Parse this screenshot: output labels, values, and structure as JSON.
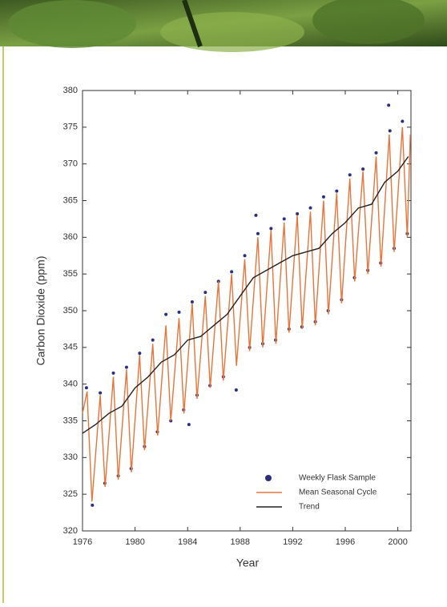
{
  "chart_data": {
    "type": "line",
    "x_label": "Year",
    "y_label": "Carbon Dioxide (ppm)",
    "xlim": [
      1976,
      2001
    ],
    "xticks": [
      1976,
      1980,
      1984,
      1988,
      1992,
      1996,
      2000
    ],
    "ylim": [
      320,
      380
    ],
    "yticks": [
      320,
      325,
      330,
      335,
      340,
      345,
      350,
      355,
      360,
      365,
      370,
      375,
      380
    ],
    "series": [
      {
        "name": "Weekly Flask Sample",
        "type": "scatter",
        "color": "#2b2f7c",
        "x": [
          1976.3,
          1976.75,
          1977.35,
          1977.7,
          1978.35,
          1978.72,
          1979.35,
          1979.7,
          1980.35,
          1980.72,
          1981.35,
          1981.7,
          1982.35,
          1982.72,
          1983.35,
          1983.7,
          1984.1,
          1984.35,
          1984.72,
          1985.35,
          1985.7,
          1986.35,
          1986.72,
          1987.35,
          1987.7,
          1988.35,
          1988.72,
          1989.2,
          1989.35,
          1989.72,
          1990.35,
          1990.7,
          1991.35,
          1991.72,
          1992.35,
          1992.7,
          1993.35,
          1993.72,
          1994.35,
          1994.7,
          1995.35,
          1995.72,
          1996.35,
          1996.7,
          1997.35,
          1997.72,
          1998.35,
          1998.7,
          1999.3,
          1999.4,
          1999.72,
          2000.35,
          2000.72
        ],
        "values": [
          339.5,
          323.5,
          338.8,
          326.5,
          341.5,
          327.5,
          342.3,
          328.5,
          344.2,
          331.5,
          346,
          333.5,
          349.5,
          335,
          349.8,
          336.5,
          334.5,
          351.2,
          338.5,
          352.5,
          339.8,
          354,
          341,
          355.3,
          339.2,
          357.5,
          345,
          363,
          360.5,
          345.5,
          361.2,
          346,
          362.5,
          347.5,
          363.2,
          347.8,
          364,
          348.5,
          365.5,
          350,
          366.3,
          351.5,
          368.5,
          354.5,
          369.3,
          355.5,
          371.5,
          356.5,
          378,
          374.5,
          358.5,
          375.8,
          360.5
        ]
      },
      {
        "name": "Mean Seasonal Cycle",
        "type": "line",
        "color": "#e8743b",
        "x": [
          1976.0,
          1976.35,
          1976.72,
          1977.35,
          1977.72,
          1978.35,
          1978.72,
          1979.35,
          1979.72,
          1980.35,
          1980.72,
          1981.35,
          1981.72,
          1982.35,
          1982.72,
          1983.35,
          1983.72,
          1984.35,
          1984.72,
          1985.35,
          1985.72,
          1986.35,
          1986.72,
          1987.35,
          1987.72,
          1988.35,
          1988.72,
          1989.35,
          1989.72,
          1990.35,
          1990.72,
          1991.35,
          1991.72,
          1992.35,
          1992.72,
          1993.35,
          1993.72,
          1994.35,
          1994.72,
          1995.35,
          1995.72,
          1996.35,
          1996.72,
          1997.35,
          1997.72,
          1998.35,
          1998.72,
          1999.35,
          1999.72,
          2000.35,
          2000.72,
          2000.95
        ],
        "values": [
          336,
          339,
          324,
          338.5,
          326,
          341,
          327,
          342,
          328,
          344,
          331,
          345.5,
          333,
          348,
          335,
          349,
          336,
          351,
          338,
          352,
          339.5,
          354,
          340.5,
          355,
          342.5,
          357,
          344.5,
          360,
          345,
          361,
          345.5,
          362,
          347,
          363,
          347.5,
          363.5,
          348,
          365,
          349.5,
          366,
          351,
          368,
          354,
          369,
          355,
          371,
          356,
          374,
          358,
          375,
          360,
          374
        ]
      },
      {
        "name": "Trend",
        "type": "line",
        "color": "#222222",
        "x": [
          1976,
          1977,
          1978,
          1979,
          1980,
          1981,
          1982,
          1983,
          1984,
          1985,
          1986,
          1987,
          1988,
          1989,
          1990,
          1991,
          1992,
          1993,
          1994,
          1995,
          1996,
          1997,
          1998,
          1999,
          2000,
          2000.8
        ],
        "values": [
          333.3,
          334.5,
          336,
          337,
          339.5,
          341,
          343,
          344,
          346,
          346.5,
          348,
          349.5,
          352,
          354.5,
          355.5,
          356.5,
          357.5,
          358,
          358.5,
          360.5,
          362,
          364,
          364.5,
          367.5,
          369,
          371
        ]
      }
    ]
  }
}
